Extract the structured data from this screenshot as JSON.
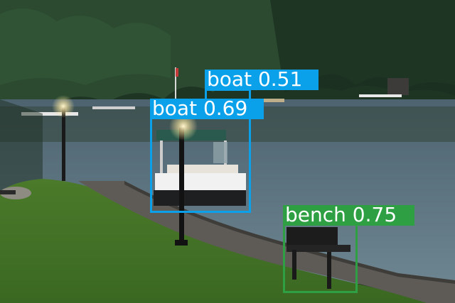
{
  "detections": [
    {
      "label": "boat 0.51",
      "color": "#0aa0ea",
      "text_color": "#ffffff"
    },
    {
      "label": "boat 0.69",
      "color": "#0aa0ea",
      "text_color": "#ffffff"
    },
    {
      "label": "bench 0.75",
      "color": "#2ea043",
      "text_color": "#ffffff"
    }
  ]
}
